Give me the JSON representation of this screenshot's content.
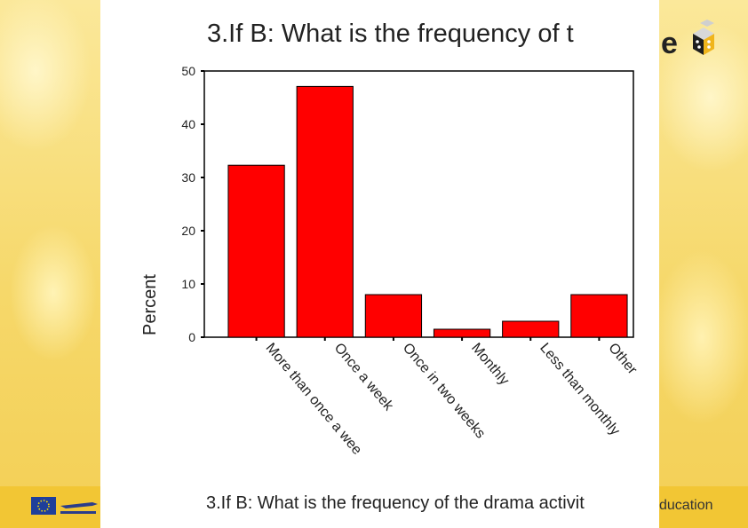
{
  "slide": {
    "title": "3.If B: What is the frequency of t",
    "caption": "3.If B: What is the frequency of the drama activit",
    "footer_right": "ducation",
    "logo_letter": "e"
  },
  "colors": {
    "bar": "#ff0000",
    "axis": "#000000",
    "accent": "#f2c634"
  },
  "chart_data": {
    "type": "bar",
    "categories": [
      "More than once a wee",
      "Once a week",
      "Once in two weeks",
      "Monthly",
      "Less than monthly",
      "Other"
    ],
    "values": [
      32.3,
      47.1,
      8.0,
      1.5,
      3.0,
      8.0
    ],
    "ylabel": "Percent",
    "xlabel": "",
    "ylim": [
      0,
      50
    ],
    "yticks": [
      0,
      10,
      20,
      30,
      40,
      50
    ],
    "grid": false,
    "legend": "none"
  }
}
